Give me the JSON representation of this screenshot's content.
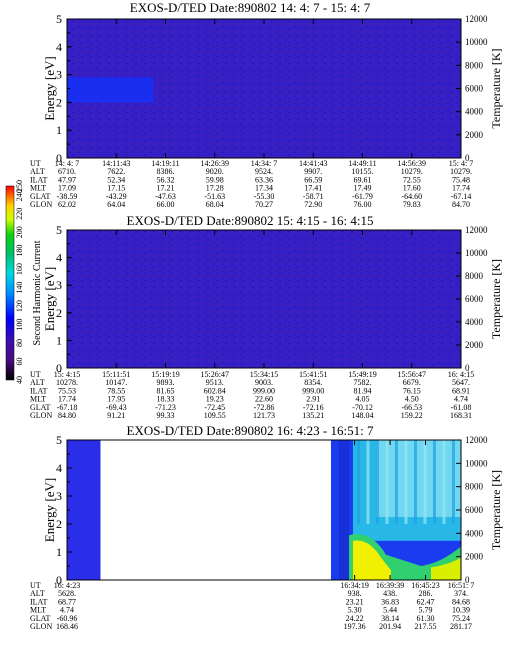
{
  "chart_data": [
    {
      "type": "heatmap",
      "title": "EXOS-D/TED   Date:890802  14: 4: 7 - 15: 4: 7",
      "ylabel": "Energy [eV]",
      "ylabel_right": "Temperature [K]",
      "ylim": [
        0,
        5
      ],
      "yticks": [
        "0",
        "1",
        "2",
        "3",
        "4",
        "5"
      ],
      "ylim_right": [
        0,
        12000
      ],
      "yticks_right": [
        "0",
        "2000",
        "4000",
        "6000",
        "8000",
        "10000",
        "12000"
      ],
      "row_labels": [
        "UT",
        "ALT",
        "ILAT",
        "MLT",
        "GLAT",
        "GLON"
      ],
      "columns": [
        [
          "14: 4: 7",
          "6710.",
          "47.97",
          "17.09",
          "-38.59",
          "62.02"
        ],
        [
          "14:11:43",
          "7622.",
          "52.34",
          "17.15",
          "-43.29",
          "64.04"
        ],
        [
          "14:19:11",
          "8386.",
          "56.32",
          "17.21",
          "-47.63",
          "66.00"
        ],
        [
          "14:26:39",
          "9020.",
          "59.98",
          "17.28",
          "-51.63",
          "68.04"
        ],
        [
          "14:34: 7",
          "9524.",
          "63.36",
          "17.34",
          "-55.30",
          "70.27"
        ],
        [
          "14:41:43",
          "9907.",
          "66.59",
          "17.41",
          "-58.71",
          "72.90"
        ],
        [
          "14:49:11",
          "10155.",
          "69.61",
          "17.49",
          "-61.79",
          "76.00"
        ],
        [
          "14:56:39",
          "10279.",
          "72.55",
          "17.60",
          "-64.60",
          "79.83"
        ],
        [
          "15: 4: 7",
          "10279.",
          "75.48",
          "17.74",
          "-67.14",
          "84.70"
        ]
      ],
      "features": [
        {
          "x": [
            0.0,
            0.22
          ],
          "y": [
            2.0,
            2.9
          ],
          "level": 40
        }
      ],
      "background_level": 22
    },
    {
      "type": "heatmap",
      "title": "EXOS-D/TED   Date:890802  15: 4:15 - 16: 4:15",
      "ylabel": "Energy [eV]",
      "ylabel_right": "Temperature [K]",
      "ylim": [
        0,
        5
      ],
      "yticks": [
        "0",
        "1",
        "2",
        "3",
        "4",
        "5"
      ],
      "ylim_right": [
        0,
        12000
      ],
      "yticks_right": [
        "0",
        "2000",
        "4000",
        "6000",
        "8000",
        "10000",
        "12000"
      ],
      "row_labels": [
        "UT",
        "ALT",
        "ILAT",
        "MLT",
        "GLAT",
        "GLON"
      ],
      "columns": [
        [
          "15: 4:15",
          "10278.",
          "75.53",
          "17.74",
          "-67.18",
          "84.80"
        ],
        [
          "15:11:51",
          "10147.",
          "78.55",
          "17.95",
          "-69.43",
          "91.21"
        ],
        [
          "15:19:19",
          "9893.",
          "81.65",
          "18.33",
          "-71.23",
          "99.33"
        ],
        [
          "15:26:47",
          "9513.",
          "602.84",
          "19.23",
          "-72.45",
          "109.55"
        ],
        [
          "15:34:15",
          "9003.",
          "999.00",
          "22.60",
          "-72.86",
          "121.73"
        ],
        [
          "15:41:51",
          "8354.",
          "999.00",
          "2.91",
          "-72.16",
          "135.21"
        ],
        [
          "15:49:19",
          "7582.",
          "81.94",
          "4.05",
          "-70.12",
          "148.04"
        ],
        [
          "15:56:47",
          "6679.",
          "76.15",
          "4.50",
          "-66.53",
          "159.22"
        ],
        [
          "16: 4:15",
          "5647.",
          "68.91",
          "4.74",
          "-61.08",
          "168.31"
        ]
      ],
      "features": [],
      "background_level": 22
    },
    {
      "type": "heatmap",
      "title": "EXOS-D/TED   Date:890802  16: 4:23 - 16:51: 7",
      "ylabel": "Energy [eV]",
      "ylabel_right": "Temperature [K]",
      "ylim": [
        0,
        5
      ],
      "yticks": [
        "0",
        "1",
        "2",
        "3",
        "4",
        "5"
      ],
      "ylim_right": [
        0,
        12000
      ],
      "yticks_right": [
        "0",
        "2000",
        "4000",
        "6000",
        "8000",
        "10000",
        "12000"
      ],
      "row_labels": [
        "UT",
        "ALT",
        "ILAT",
        "MLT",
        "GLAT",
        "GLON"
      ],
      "columns": [
        [
          "16: 4:23",
          "5628.",
          "68.77",
          "4.74",
          "-60.96",
          "168.46"
        ],
        [
          "16:34:19",
          "938.",
          "23.21",
          "5.30",
          "24.22",
          "197.36"
        ],
        [
          "16:39:39",
          "438.",
          "36.83",
          "5.44",
          "38.14",
          "201.94"
        ],
        [
          "16:45:23",
          "286.",
          "62.47",
          "5.79",
          "61.30",
          "217.55"
        ],
        [
          "16:51: 7",
          "374.",
          "84.68",
          "10.39",
          "75.24",
          "281.17"
        ]
      ],
      "column_positions": [
        0.0,
        0.73,
        0.82,
        0.91,
        1.0
      ],
      "data_ranges_x": [
        [
          0.0,
          0.085
        ],
        [
          0.67,
          1.0
        ]
      ]
    }
  ],
  "colorbar": {
    "label": "Second Harmonic Current",
    "range": [
      40,
      250
    ],
    "ticks": [
      "40",
      "60",
      "80",
      "100",
      "120",
      "140",
      "160",
      "180",
      "200",
      "220",
      "240",
      "250"
    ]
  }
}
